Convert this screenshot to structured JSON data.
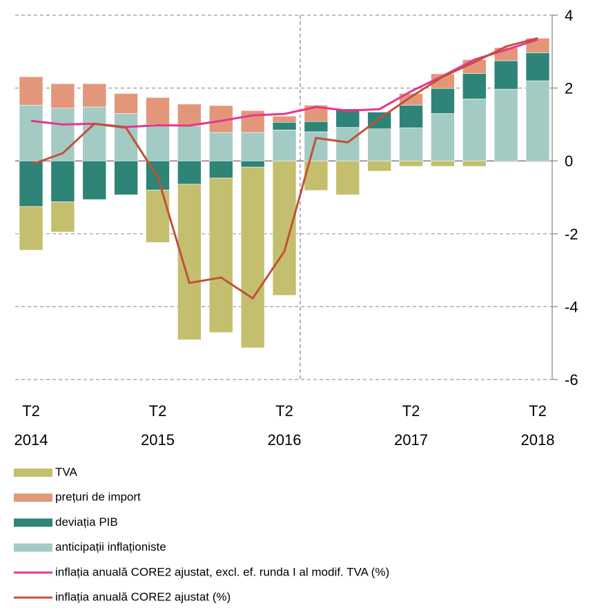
{
  "chart_data": {
    "type": "bar",
    "categories": [
      [
        "T2",
        "2014"
      ],
      null,
      null,
      null,
      [
        "T2",
        "2015"
      ],
      null,
      null,
      null,
      [
        "T2",
        "2016"
      ],
      null,
      null,
      null,
      [
        "T2",
        "2017"
      ],
      null,
      null,
      null,
      [
        "T2",
        "2018"
      ]
    ],
    "series": [
      {
        "name": "TVA",
        "color": "#c4bf6e",
        "values": [
          -1.2,
          -0.83,
          0,
          0,
          -1.44,
          -4.27,
          -4.24,
          -4.96,
          -3.69,
          -0.81,
          -0.93,
          -0.28,
          -0.15,
          -0.15,
          -0.15,
          0,
          0
        ]
      },
      {
        "name": "prețuri de import",
        "color": "#e3977a",
        "values": [
          0.78,
          0.67,
          0.64,
          0.55,
          0.74,
          0.59,
          0.74,
          0.6,
          0.17,
          0.45,
          0,
          0,
          0.32,
          0.4,
          0.38,
          0.36,
          0.4
        ]
      },
      {
        "name": "deviația PIB",
        "color": "#2e8477",
        "values": [
          -1.25,
          -1.12,
          -1.06,
          -0.93,
          -0.8,
          -0.64,
          -0.47,
          -0.17,
          0.21,
          0.28,
          0.51,
          0.46,
          0.62,
          0.69,
          0.7,
          0.78,
          0.77
        ]
      },
      {
        "name": "anticipații inflaționiste",
        "color": "#a3cbc3",
        "values": [
          1.53,
          1.45,
          1.48,
          1.3,
          1.0,
          0.97,
          0.78,
          0.78,
          0.85,
          0.8,
          0.92,
          0.88,
          0.91,
          1.3,
          1.7,
          1.97,
          2.2
        ]
      },
      {
        "name": "inflația anuală CORE2 ajustat, excl. ef. runda I al modif. TVA (%)",
        "type": "line",
        "color": "#e8348f",
        "values": [
          1.1,
          1.0,
          1.02,
          0.93,
          0.98,
          0.97,
          1.1,
          1.25,
          1.29,
          1.48,
          1.38,
          1.42,
          1.91,
          2.33,
          2.78,
          3.05,
          3.33
        ]
      },
      {
        "name": "inflația anuală CORE2 ajustat (%)",
        "type": "line",
        "color": "#c0513a",
        "values": [
          -0.1,
          0.21,
          1.02,
          0.91,
          -0.44,
          -3.35,
          -3.2,
          -3.77,
          -2.48,
          0.63,
          0.51,
          1.16,
          1.76,
          2.31,
          2.71,
          3.14,
          3.37
        ]
      }
    ],
    "ylim": [
      -6,
      4
    ],
    "yticks": [
      -6,
      -4,
      -2,
      0,
      2,
      4
    ],
    "grid": true
  }
}
